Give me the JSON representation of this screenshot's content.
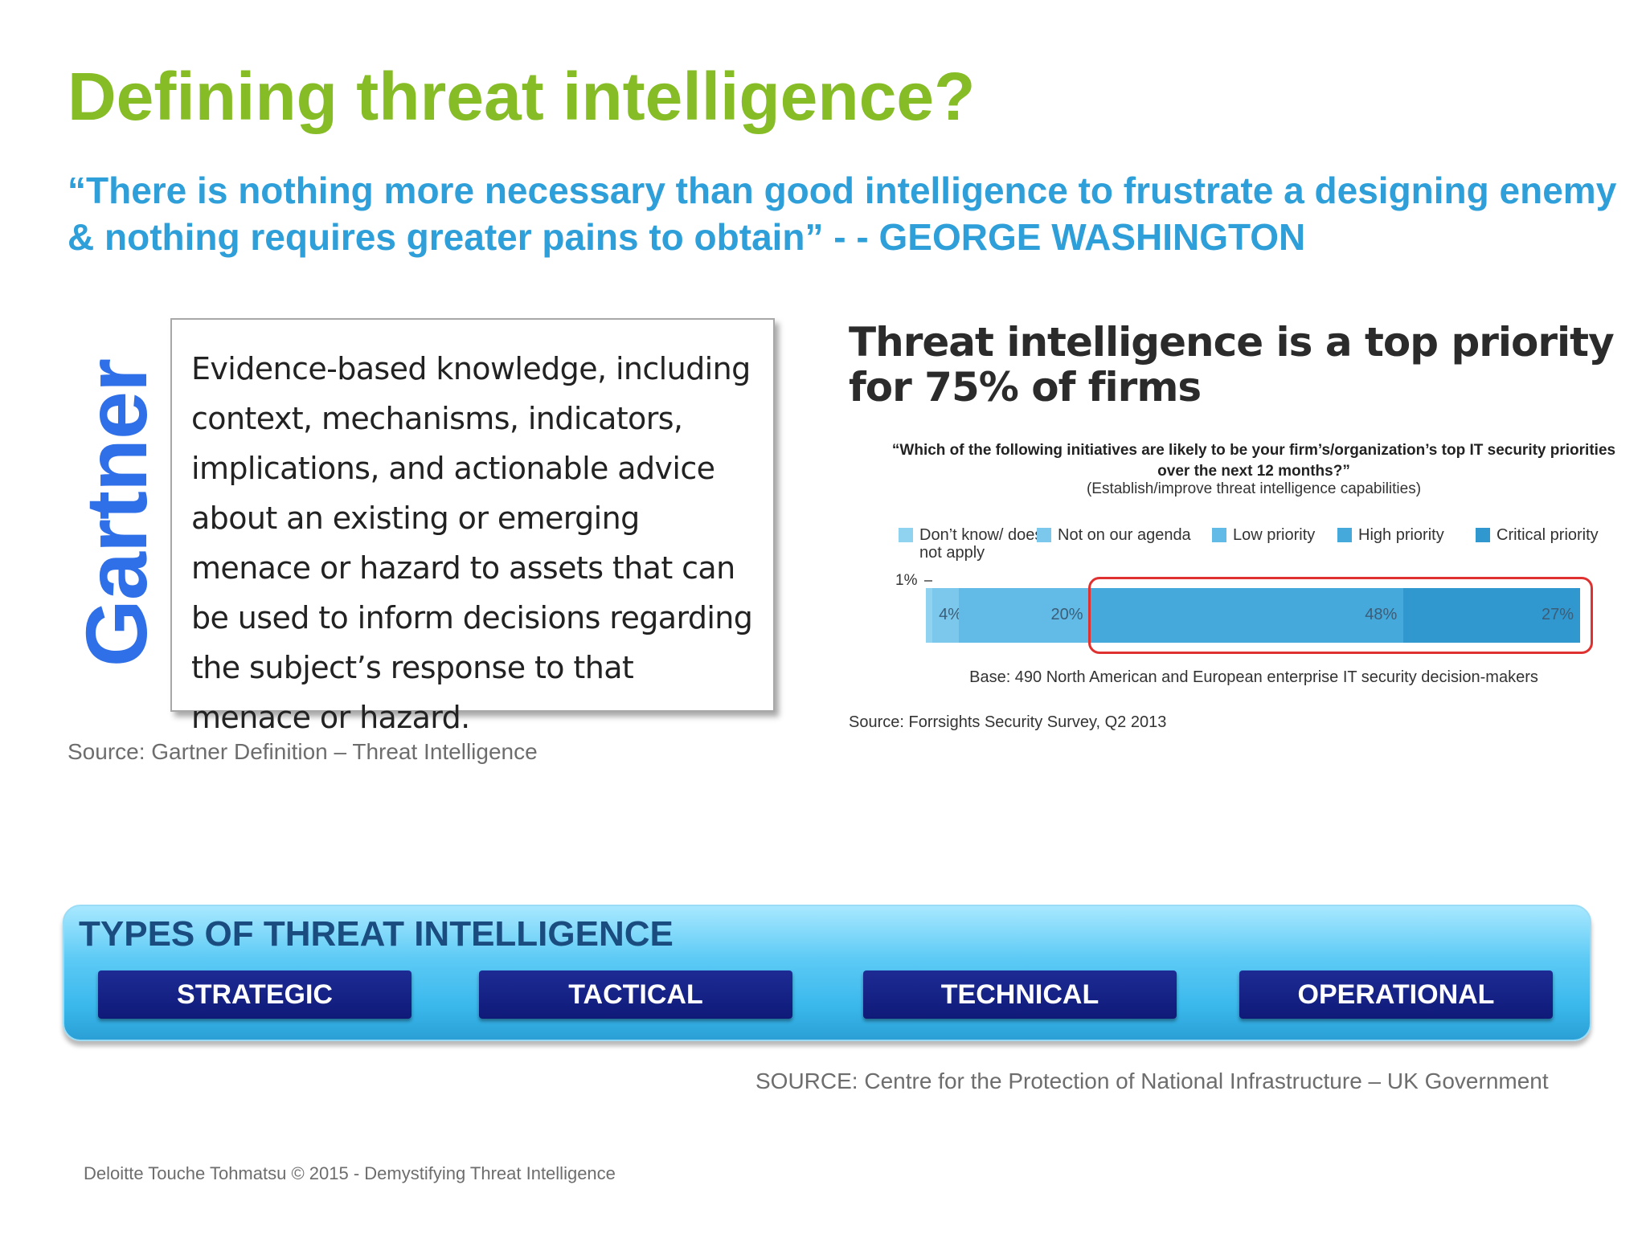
{
  "slide": {
    "title": "Defining threat intelligence?",
    "quote": "“There is nothing more necessary than good intelligence to frustrate a designing enemy & nothing requires greater pains to obtain” - - GEORGE WASHINGTON"
  },
  "gartner": {
    "logo_text": "Gartner",
    "definition": "Evidence-based knowledge, including context, mechanisms, indicators, implications, and actionable advice about an existing or emerging menace or hazard to assets that can be used to inform decisions regarding the subject’s response to that menace or hazard.",
    "source": "Source: Gartner Definition – Threat Intelligence"
  },
  "chart_data": {
    "type": "bar",
    "title": "Threat intelligence is a top priority for 75% of firms",
    "question": "“Which of the following initiatives are likely to be your firm’s/organization’s top IT security priorities over the next 12 months?”",
    "question_note": "(Establish/improve threat intelligence capabilities)",
    "orientation": "horizontal-stacked",
    "categories": [
      "Establish/improve threat intelligence capabilities"
    ],
    "series": [
      {
        "name": "Don’t know/ does not apply",
        "values": [
          1
        ],
        "label": "1%",
        "color": "#8fd3f0"
      },
      {
        "name": "Not on our agenda",
        "values": [
          4
        ],
        "label": "4%",
        "color": "#7cc8ec"
      },
      {
        "name": "Low priority",
        "values": [
          20
        ],
        "label": "20%",
        "color": "#62bbe6"
      },
      {
        "name": "High priority",
        "values": [
          48
        ],
        "label": "48%",
        "color": "#45a9dc"
      },
      {
        "name": "Critical priority",
        "values": [
          27
        ],
        "label": "27%",
        "color": "#3098cf"
      }
    ],
    "highlight": "High priority + Critical priority",
    "highlight_color": "#e03131",
    "base": "Base: 490 North American and European enterprise IT security decision-makers",
    "source": "Source: Forrsights Security Survey, Q2 2013"
  },
  "types": {
    "heading": "TYPES OF THREAT INTELLIGENCE",
    "items": [
      {
        "label": "STRATEGIC"
      },
      {
        "label": "TACTICAL"
      },
      {
        "label": "TECHNICAL"
      },
      {
        "label": "OPERATIONAL"
      }
    ],
    "source": "SOURCE: Centre for the Protection of National Infrastructure – UK Government"
  },
  "footer": "Deloitte Touche Tohmatsu © 2015 - Demystifying Threat Intelligence"
}
